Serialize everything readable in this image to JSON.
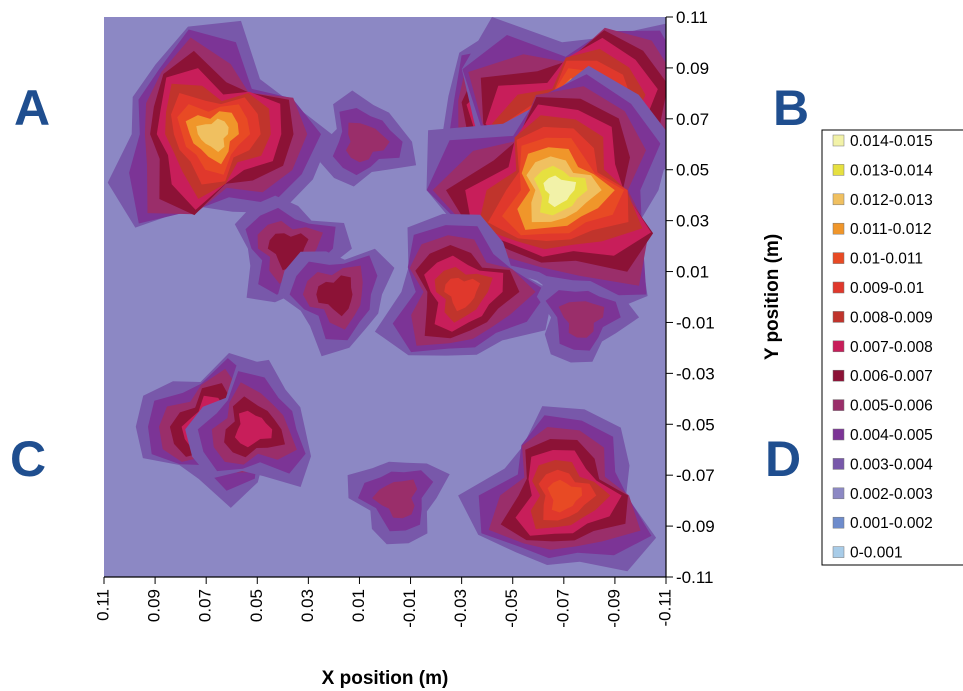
{
  "chart_data": {
    "type": "heatmap",
    "subtype": "filled contour map",
    "xlabel": "X position (m)",
    "ylabel": "Y position (m)",
    "xlim": [
      0.11,
      -0.11
    ],
    "ylim": [
      -0.11,
      0.11
    ],
    "x_ticks": [
      "0.11",
      "0.09",
      "0.07",
      "0.05",
      "0.03",
      "0.01",
      "-0.01",
      "-0.03",
      "-0.05",
      "-0.07",
      "-0.09",
      "-0.11"
    ],
    "y_ticks": [
      "0.11",
      "0.09",
      "0.07",
      "0.05",
      "0.03",
      "0.01",
      "-0.01",
      "-0.03",
      "-0.05",
      "-0.07",
      "-0.09",
      "-0.11"
    ],
    "quadrant_labels": [
      "A",
      "B",
      "C",
      "D"
    ],
    "legend_placement": "right",
    "legend": [
      {
        "label": "0.014-0.015",
        "color": "#f2f2a8"
      },
      {
        "label": "0.013-0.014",
        "color": "#e6e040"
      },
      {
        "label": "0.012-0.013",
        "color": "#f0c060"
      },
      {
        "label": "0.011-0.012",
        "color": "#f0962a"
      },
      {
        "label": "0.01-0.011",
        "color": "#e84a24"
      },
      {
        "label": "0.009-0.01",
        "color": "#e0382c"
      },
      {
        "label": "0.008-0.009",
        "color": "#c0342c"
      },
      {
        "label": "0.007-0.008",
        "color": "#c81e5a"
      },
      {
        "label": "0.006-0.007",
        "color": "#8c1236"
      },
      {
        "label": "0.005-0.006",
        "color": "#9a2e6a"
      },
      {
        "label": "0.004-0.005",
        "color": "#7c3496"
      },
      {
        "label": "0.003-0.004",
        "color": "#7858aa"
      },
      {
        "label": "0.002-0.003",
        "color": "#8c88c4"
      },
      {
        "label": "0.001-0.002",
        "color": "#6e8ccc"
      },
      {
        "label": "0-0.001",
        "color": "#a8cce8"
      }
    ],
    "background_level": "0.002-0.003",
    "hotspots": [
      {
        "x": 0.067,
        "y": 0.064,
        "peak": "0.012-0.013"
      },
      {
        "x": -0.055,
        "y": 0.065,
        "peak": "0.011-0.012"
      },
      {
        "x": -0.077,
        "y": 0.068,
        "peak": "0.014-0.015"
      },
      {
        "x": -0.068,
        "y": 0.042,
        "peak": "0.014-0.015"
      },
      {
        "x": -0.07,
        "y": -0.078,
        "peak": "0.01-0.011"
      },
      {
        "x": -0.03,
        "y": 0.002,
        "peak": "0.009-0.01"
      },
      {
        "x": 0.038,
        "y": 0.019,
        "peak": "0.006-0.007"
      },
      {
        "x": 0.019,
        "y": 0.001,
        "peak": "0.006-0.007"
      },
      {
        "x": 0.068,
        "y": -0.051,
        "peak": "0.008-0.009"
      },
      {
        "x": 0.052,
        "y": -0.052,
        "peak": "0.007-0.008"
      },
      {
        "x": 0.008,
        "y": 0.061,
        "peak": "0.005-0.006"
      },
      {
        "x": -0.077,
        "y": -0.008,
        "peak": "0.005-0.006"
      },
      {
        "x": -0.005,
        "y": -0.079,
        "peak": "0.005-0.006"
      }
    ]
  }
}
